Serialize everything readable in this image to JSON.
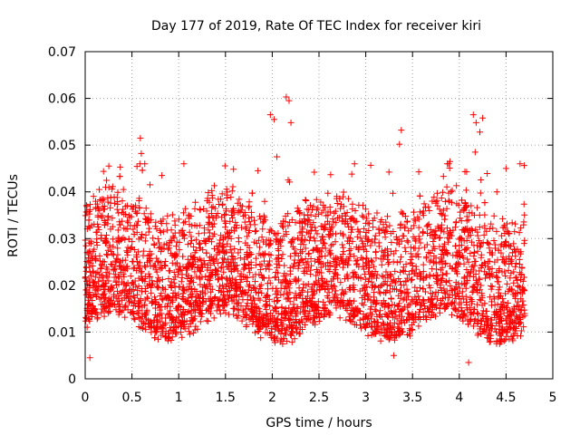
{
  "chart_data": {
    "type": "scatter",
    "title": "Day 177 of 2019, Rate Of TEC Index for receiver kiri",
    "xlabel": "GPS time / hours",
    "ylabel": "ROTI / TECUs",
    "xlim": [
      0,
      5
    ],
    "ylim": [
      0,
      0.07
    ],
    "xticks": [
      "0",
      "0.5",
      "1",
      "1.5",
      "2",
      "2.5",
      "3",
      "3.5",
      "4",
      "4.5",
      "5"
    ],
    "yticks": [
      "0",
      "0.01",
      "0.02",
      "0.03",
      "0.04",
      "0.05",
      "0.06",
      "0.07"
    ],
    "grid": true,
    "marker": "+",
    "series": [
      {
        "name": "ROTI",
        "color": "#ff0000",
        "x_range": [
          0.0,
          4.7
        ],
        "typical_range": [
          0.005,
          0.03
        ],
        "notable_points": [
          {
            "x": 0.59,
            "y": 0.0515
          },
          {
            "x": 0.6,
            "y": 0.0482
          },
          {
            "x": 0.15,
            "y": 0.0405
          },
          {
            "x": 0.82,
            "y": 0.0435
          },
          {
            "x": 1.98,
            "y": 0.0565
          },
          {
            "x": 2.02,
            "y": 0.0555
          },
          {
            "x": 2.15,
            "y": 0.0603
          },
          {
            "x": 2.18,
            "y": 0.0595
          },
          {
            "x": 2.2,
            "y": 0.0548
          },
          {
            "x": 2.05,
            "y": 0.0475
          },
          {
            "x": 2.45,
            "y": 0.0442
          },
          {
            "x": 2.85,
            "y": 0.0438
          },
          {
            "x": 3.38,
            "y": 0.0532
          },
          {
            "x": 3.36,
            "y": 0.0502
          },
          {
            "x": 3.9,
            "y": 0.0465
          },
          {
            "x": 4.15,
            "y": 0.0565
          },
          {
            "x": 4.18,
            "y": 0.0548
          },
          {
            "x": 4.22,
            "y": 0.0528
          },
          {
            "x": 4.25,
            "y": 0.0558
          },
          {
            "x": 4.17,
            "y": 0.0485
          },
          {
            "x": 4.5,
            "y": 0.045
          },
          {
            "x": 4.65,
            "y": 0.046
          },
          {
            "x": 0.05,
            "y": 0.0045
          },
          {
            "x": 4.1,
            "y": 0.0035
          },
          {
            "x": 3.3,
            "y": 0.005
          }
        ]
      }
    ]
  }
}
